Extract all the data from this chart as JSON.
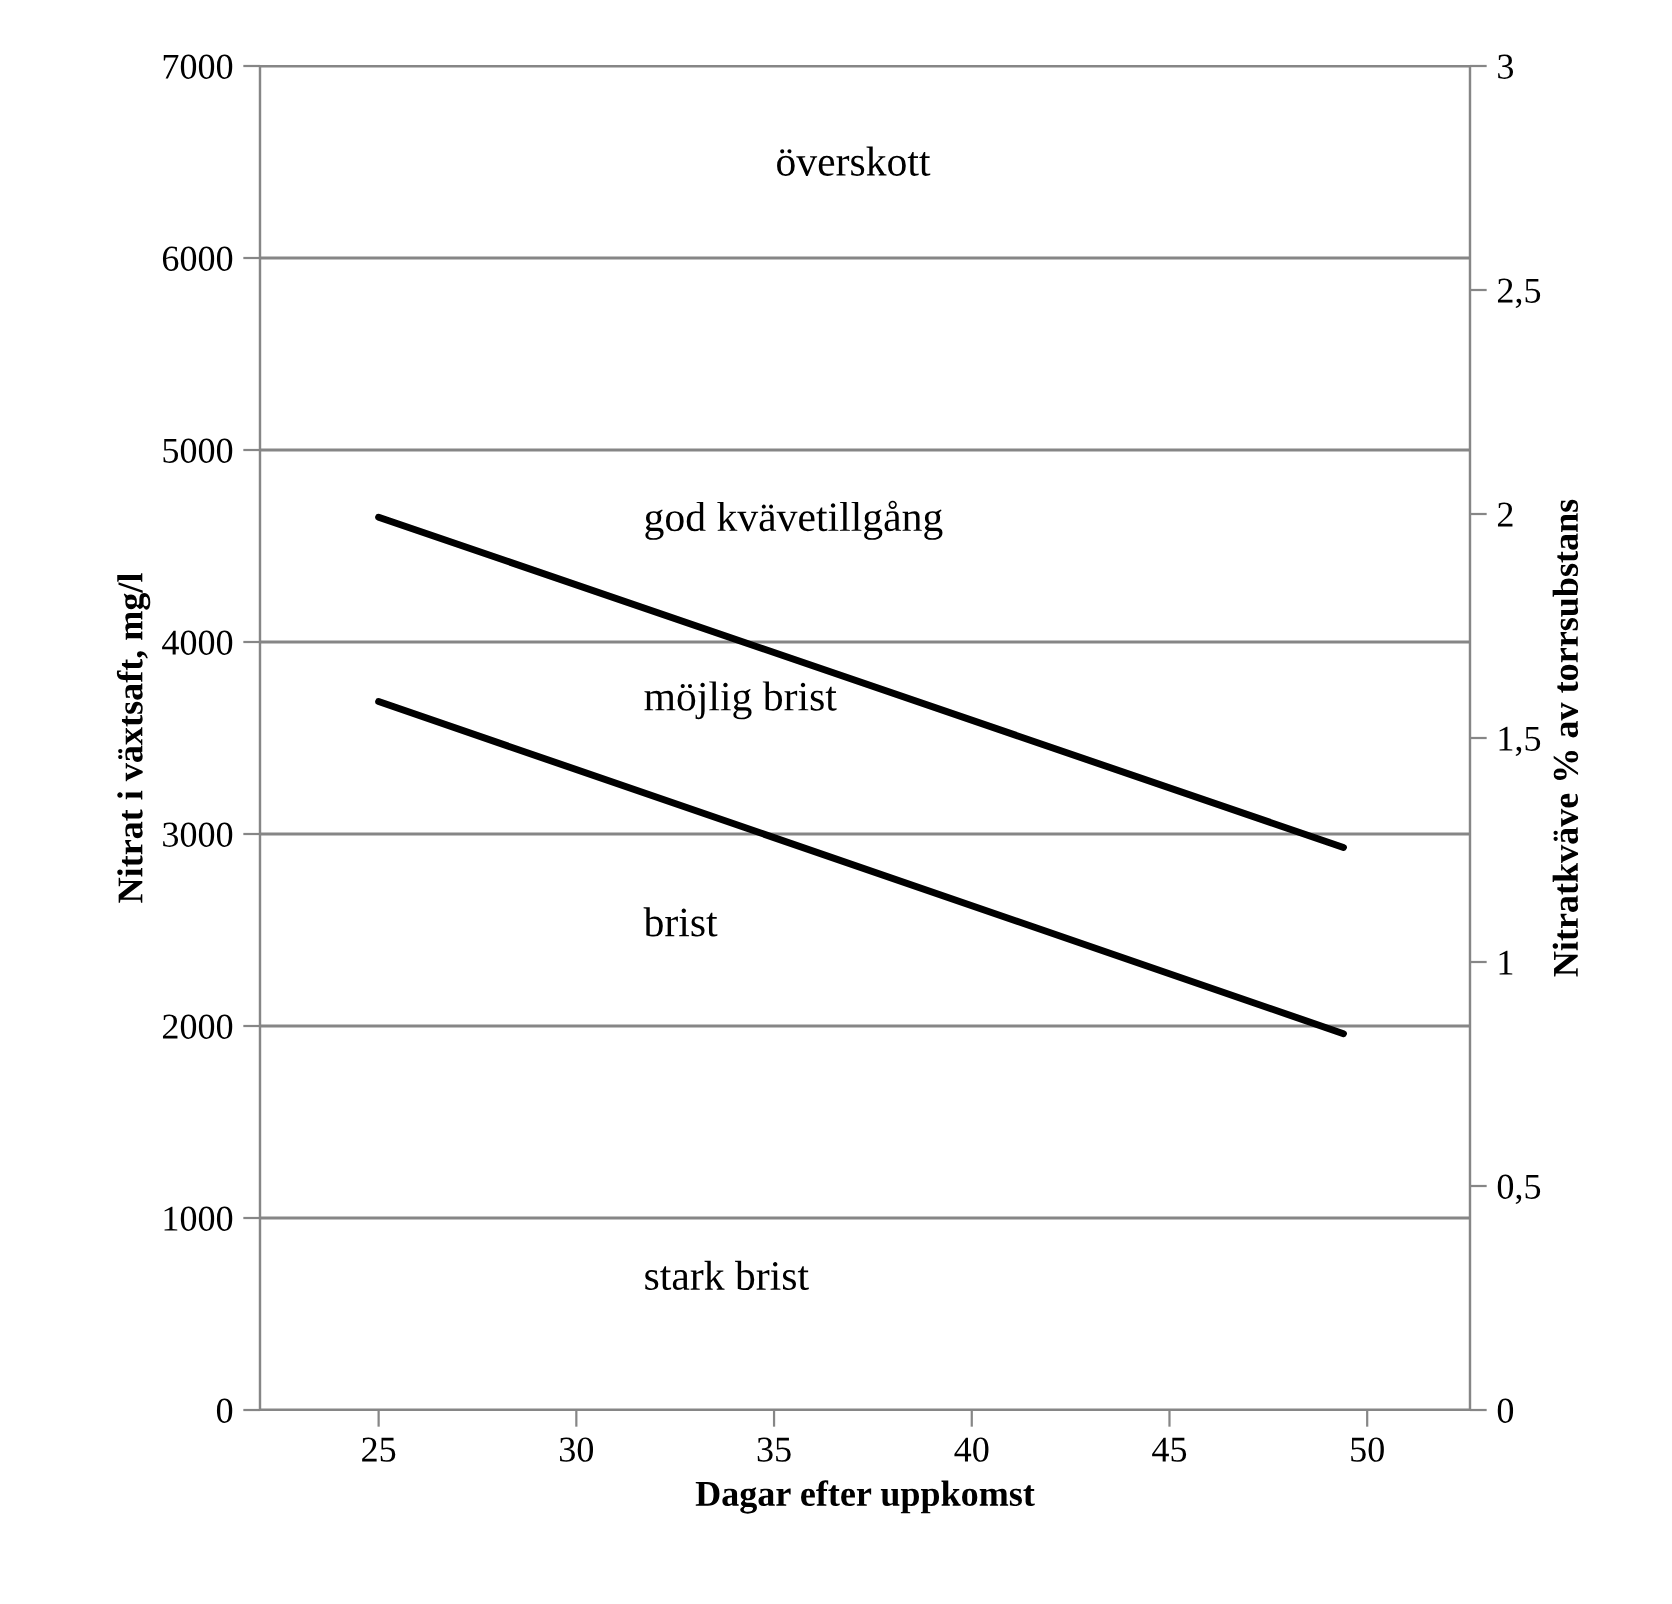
{
  "chart_data": {
    "type": "line",
    "xlabel": "Dagar efter uppkomst",
    "ylabel": "Nitrat i växtsaft, mg/l",
    "y2label": "Nitratkväve % av torrsubstans",
    "x": [
      25,
      49.4
    ],
    "series": [
      {
        "color": "#000000",
        "values": [
          4650,
          2930
        ]
      },
      {
        "color": "#000000",
        "values": [
          3690,
          1960
        ]
      }
    ],
    "xlim": [
      22,
      52.6
    ],
    "xticks": [
      25,
      30,
      35,
      40,
      45,
      50
    ],
    "ylim": [
      0,
      7000
    ],
    "yticks": [
      0,
      1000,
      2000,
      3000,
      4000,
      5000,
      6000,
      7000
    ],
    "y2lim": [
      0,
      3
    ],
    "y2ticks": [
      0,
      {
        "value": 0.5,
        "label": "0,5"
      },
      1,
      {
        "value": 1.5,
        "label": "1,5"
      },
      2,
      {
        "value": 2.5,
        "label": "2,5"
      },
      3
    ],
    "grid": "y",
    "legend": false,
    "marker": "none",
    "line_style": "solid",
    "annotations": [
      "överskott",
      "god kvävetillgång",
      "möjlig brist",
      "brist",
      "stark brist"
    ]
  }
}
